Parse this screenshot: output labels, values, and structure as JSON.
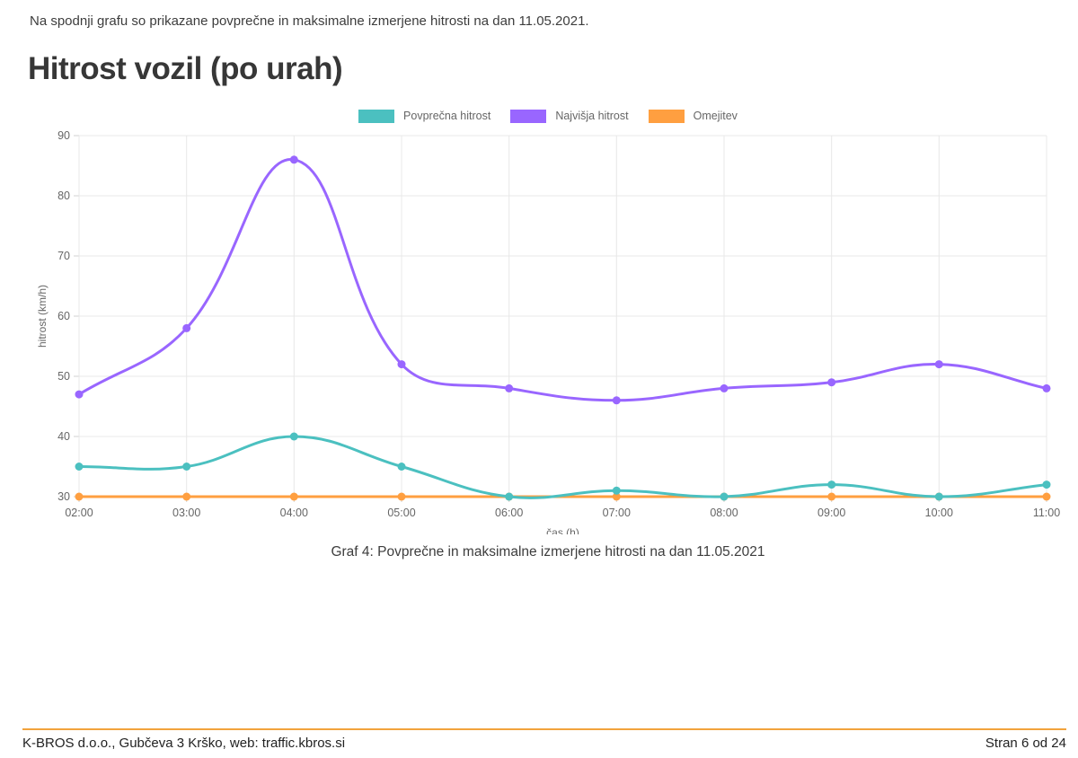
{
  "page": {
    "intro": "Na spodnji grafu so prikazane povprečne in maksimalne izmerjene hitrosti na dan 11.05.2021.",
    "title": "Hitrost vozil (po urah)",
    "caption": "Graf 4: Povprečne in maksimalne izmerjene hitrosti na dan 11.05.2021",
    "footer": {
      "left": "K-BROS d.o.o., Gubčeva 3 Krško, web: traffic.kbros.si",
      "right": "Stran 6 od 24",
      "rule_color": "#f2a33c"
    }
  },
  "chart_data": {
    "type": "line",
    "x": [
      "02:00",
      "03:00",
      "04:00",
      "05:00",
      "06:00",
      "07:00",
      "08:00",
      "09:00",
      "10:00",
      "11:00"
    ],
    "series": [
      {
        "name": "Povprečna hitrost",
        "color": "#4BC0C0",
        "values": [
          35,
          35,
          40,
          35,
          30,
          31,
          30,
          32,
          30,
          32
        ]
      },
      {
        "name": "Najvišja hitrost",
        "color": "#9966FF",
        "values": [
          47,
          58,
          86,
          52,
          48,
          46,
          48,
          49,
          52,
          48
        ]
      },
      {
        "name": "Omejitev",
        "color": "#FF9F40",
        "values": [
          30,
          30,
          30,
          30,
          30,
          30,
          30,
          30,
          30,
          30
        ]
      }
    ],
    "xlabel": "čas (h)",
    "ylabel": "hitrost (km/h)",
    "ylim": [
      30,
      90
    ],
    "y_ticks": [
      30,
      40,
      50,
      60,
      70,
      80,
      90
    ],
    "grid": true,
    "legend_position": "top",
    "line_tension": 0.4,
    "grid_color": "#e8e8e8",
    "tick_color": "#d2d2d2",
    "tick_label_color": "#666666"
  }
}
